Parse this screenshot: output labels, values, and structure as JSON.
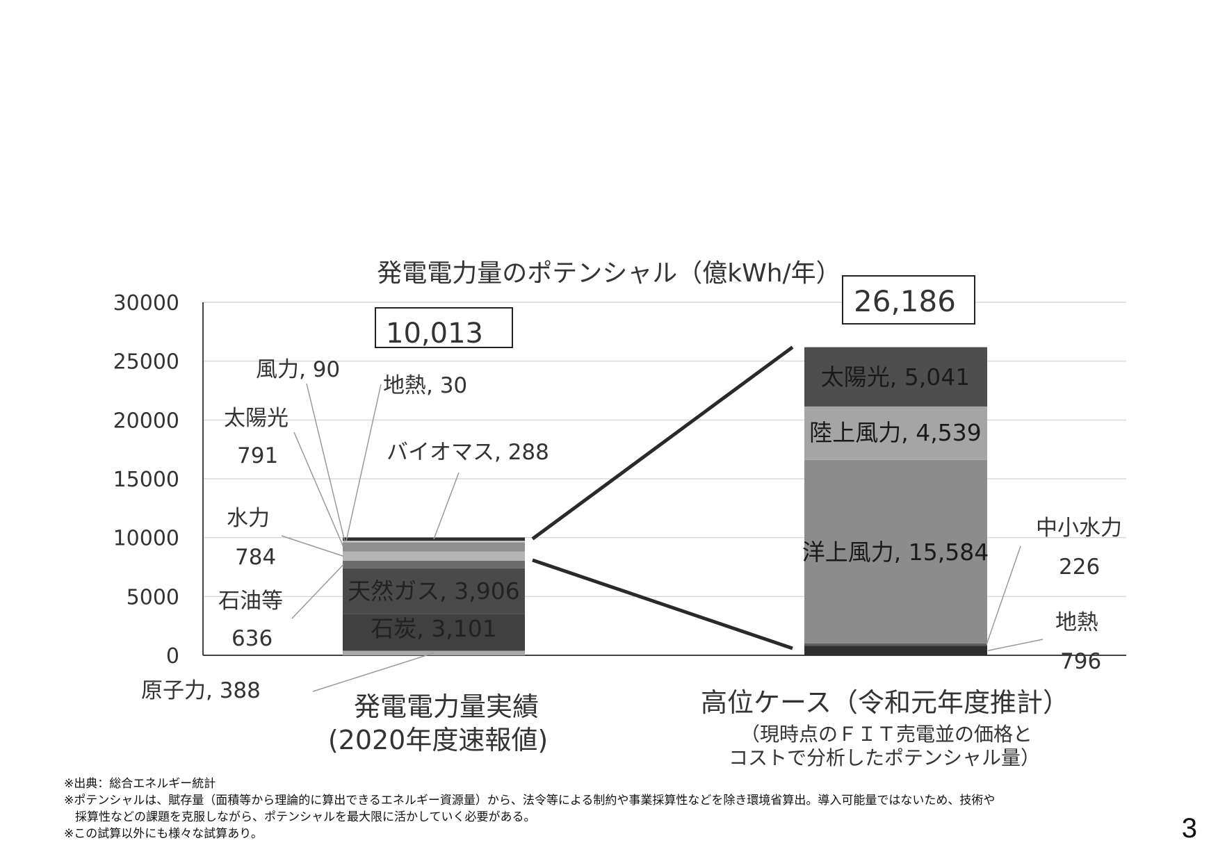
{
  "chart_data": {
    "type": "bar",
    "title": "発電電力量のポテンシャル（億kWh/年）",
    "ylim": [
      0,
      30000
    ],
    "yticks": [
      "30000",
      "25000",
      "20000",
      "15000",
      "10000",
      "5000",
      "0"
    ],
    "grid": true,
    "colors": {
      "nuclear": "#a8a8a8",
      "coal": "#404040",
      "gas": "#4a4a4a",
      "oil": "#6b6b6b",
      "hydro": "#b5b5b5",
      "solar_actual": "#8f8f8f",
      "wind_actual": "#cfcfcf",
      "geothermal_actual": "#e3e3e3",
      "biomass": "#2e2e2e",
      "geothermal_high": "#2f2f2f",
      "small_hydro": "#5e5e5e",
      "offshore_wind": "#8c8c8c",
      "onshore_wind": "#a5a5a5",
      "solar_high": "#4e4e4e"
    },
    "bars": [
      {
        "category": "発電電力量実績",
        "category_sub": "(2020年度速報値)",
        "total": 10013,
        "total_label": "10,013",
        "segments": [
          {
            "name": "原子力",
            "value": 388,
            "label": "原子力, 388"
          },
          {
            "name": "石炭",
            "value": 3101,
            "label": "石炭, 3,101"
          },
          {
            "name": "天然ガス",
            "value": 3906,
            "label": "天然ガス, 3,906"
          },
          {
            "name": "石油等",
            "value": 636,
            "label_line1": "石油等",
            "label_line2": "636"
          },
          {
            "name": "水力",
            "value": 784,
            "label_line1": "水力",
            "label_line2": "784"
          },
          {
            "name": "太陽光",
            "value": 791,
            "label_line1": "太陽光",
            "label_line2": "791"
          },
          {
            "name": "風力",
            "value": 90,
            "label": "風力, 90"
          },
          {
            "name": "地熱",
            "value": 30,
            "label": "地熱, 30"
          },
          {
            "name": "バイオマス",
            "value": 288,
            "label": "バイオマス, 288"
          }
        ]
      },
      {
        "category": "高位ケース（令和元年度推計）",
        "category_sub1": "（現時点のＦＩＴ売電並の価格と",
        "category_sub2": "コストで分析したポテンシャル量）",
        "total": 26186,
        "total_label": "26,186",
        "segments": [
          {
            "name": "地熱",
            "value": 796,
            "label_line1": "地熱",
            "label_line2": "796"
          },
          {
            "name": "中小水力",
            "value": 226,
            "label_line1": "中小水力",
            "label_line2": "226"
          },
          {
            "name": "洋上風力",
            "value": 15584,
            "label": "洋上風力, 15,584"
          },
          {
            "name": "陸上風力",
            "value": 4539,
            "label": "陸上風力, 4,539"
          },
          {
            "name": "太陽光",
            "value": 5041,
            "label": "太陽光, 5,041"
          }
        ]
      }
    ]
  },
  "footnotes": {
    "line1": "※出典：総合エネルギー統計",
    "line2": "※ポテンシャルは、賦存量（面積等から理論的に算出できるエネルギー資源量）から、法令等による制約や事業採算性などを除き環境省算出。導入可能量ではないため、技術や",
    "line3": "採算性などの課題を克服しながら、ポテンシャルを最大限に活かしていく必要がある。",
    "line4": "※この試算以外にも様々な試算あり。"
  },
  "page_number": "3"
}
